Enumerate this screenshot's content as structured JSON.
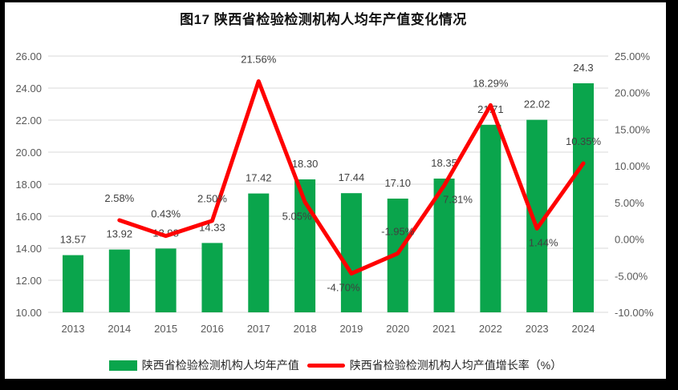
{
  "page": {
    "title": "图17 陕西省检验检测机构人均年产值变化情况"
  },
  "colors": {
    "bar": "#0AA54C",
    "line": "#FF0000",
    "grid": "#D9D9D9",
    "axis_text": "#595959",
    "label_text": "#404040",
    "frame": "#000000",
    "background": "#FFFFFF"
  },
  "chart_data": {
    "type": "combo-bar-line",
    "title": "图17 陕西省检验检测机构人均年产值变化情况",
    "categories": [
      "2013",
      "2014",
      "2015",
      "2016",
      "2017",
      "2018",
      "2019",
      "2020",
      "2021",
      "2022",
      "2023",
      "2024"
    ],
    "series": [
      {
        "name": "陕西省检验检测机构人均年产值",
        "type": "bar",
        "axis": "left",
        "color": "#0AA54C",
        "values": [
          13.57,
          13.92,
          13.98,
          14.33,
          17.42,
          18.3,
          17.44,
          17.1,
          18.35,
          21.71,
          22.02,
          24.3
        ],
        "labels": [
          "13.57",
          "13.92",
          "13.98",
          "14.33",
          "17.42",
          "18.30",
          "17.44",
          "17.10",
          "18.35",
          "21.71",
          "22.02",
          "24.3"
        ]
      },
      {
        "name": "陕西省检验检测机构人均产值增长率（%）",
        "type": "line",
        "axis": "right",
        "color": "#FF0000",
        "x_start_index": 1,
        "values": [
          2.58,
          0.43,
          2.5,
          21.56,
          5.05,
          -4.7,
          -1.95,
          7.31,
          18.29,
          1.44,
          10.35
        ],
        "labels": [
          "2.58%",
          "0.43%",
          "2.50%",
          "21.56%",
          "5.05%",
          "-4.70%",
          "-1.95%",
          "7.31%",
          "18.29%",
          "1.44%",
          "10.35%"
        ]
      }
    ],
    "left_axis": {
      "min": 10,
      "max": 26,
      "step": 2,
      "tick_labels": [
        "26.00",
        "24.00",
        "22.00",
        "20.00",
        "18.00",
        "16.00",
        "14.00",
        "12.00",
        "10.00"
      ]
    },
    "right_axis": {
      "min": -10,
      "max": 25,
      "step": 5,
      "tick_labels": [
        "25.00%",
        "20.00%",
        "15.00%",
        "10.00%",
        "5.00%",
        "0.00%",
        "-5.00%",
        "-10.00%"
      ]
    },
    "grid": true,
    "legend_position": "bottom"
  },
  "legend": {
    "bar_label": "陕西省检验检测机构人均年产值",
    "line_label": "陕西省检验检测机构人均产值增长率（%）"
  }
}
